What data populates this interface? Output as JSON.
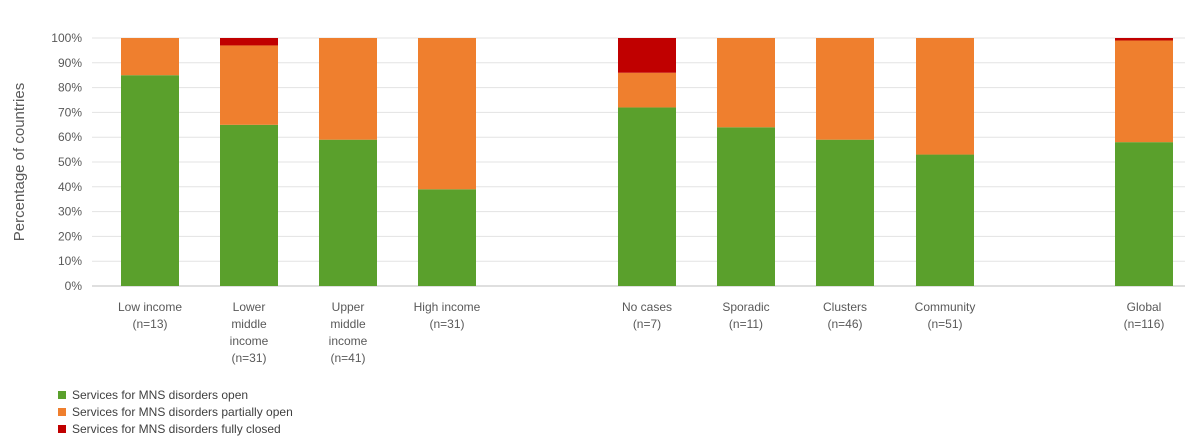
{
  "chart_data": {
    "type": "bar",
    "stacked": true,
    "percent_stacked": true,
    "title": "",
    "xlabel": "",
    "ylabel": "Percentage of countries",
    "ylim": [
      0,
      100
    ],
    "yticks": [
      "0%",
      "10%",
      "20%",
      "30%",
      "40%",
      "50%",
      "60%",
      "70%",
      "80%",
      "90%",
      "100%"
    ],
    "grid": true,
    "legend_position": "bottom-left",
    "categories": [
      [
        "Low income",
        "(n=13)"
      ],
      [
        "Lower",
        "middle",
        "income",
        "(n=31)"
      ],
      [
        "Upper",
        "middle",
        "income",
        "(n=41)"
      ],
      [
        "High income",
        "(n=31)"
      ],
      [
        "No cases",
        "(n=7)"
      ],
      [
        "Sporadic",
        "(n=11)"
      ],
      [
        "Clusters",
        "(n=46)"
      ],
      [
        "Community",
        "(n=51)"
      ],
      [
        "Global",
        "(n=116)"
      ]
    ],
    "series": [
      {
        "name": "Services for MNS disorders open",
        "color": "#5aa02c",
        "values": [
          85,
          65,
          59,
          39,
          72,
          64,
          59,
          53,
          58
        ]
      },
      {
        "name": "Services for MNS disorders partially open",
        "color": "#ef7f2e",
        "values": [
          15,
          32,
          41,
          61,
          14,
          36,
          41,
          47,
          41
        ]
      },
      {
        "name": "Services for MNS disorders fully closed",
        "color": "#c00000",
        "values": [
          0,
          3,
          0,
          0,
          14,
          0,
          0,
          0,
          1
        ]
      }
    ]
  }
}
